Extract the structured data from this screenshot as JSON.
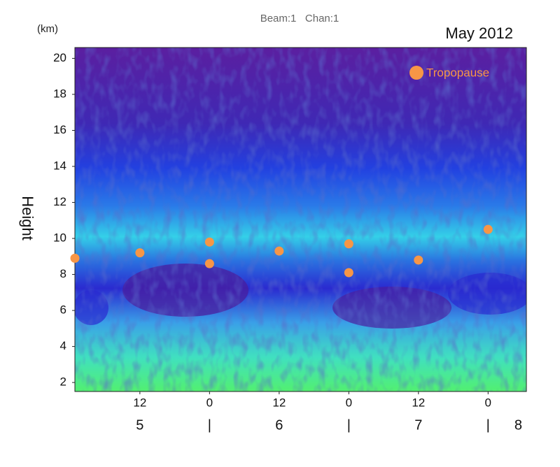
{
  "chart_data": {
    "type": "scatter",
    "title": "Beam:1   Chan:1",
    "subtitle": "May 2012",
    "y_unit": "(km)",
    "y_label": "Height",
    "xlim": [
      0.8,
      78.6
    ],
    "ylim": [
      1.5,
      20.6
    ],
    "xticks": [
      12,
      {
        "value": 24,
        "label": "0"
      },
      {
        "value": 36,
        "label": "12"
      },
      {
        "value": 48,
        "label": "0"
      },
      {
        "value": 60,
        "label": "12"
      },
      {
        "value": 72,
        "label": "0"
      }
    ],
    "day_ticks": [
      {
        "value": 12,
        "label": "5"
      },
      {
        "value": 24,
        "label": "|"
      },
      {
        "value": 36,
        "label": "6"
      },
      {
        "value": 48,
        "label": "|"
      },
      {
        "value": 60,
        "label": "7"
      },
      {
        "value": 72,
        "label": "|"
      },
      {
        "value": 77.2,
        "label": "8"
      }
    ],
    "yticks": [
      2,
      4,
      6,
      8,
      10,
      12,
      14,
      16,
      18,
      20
    ],
    "legend": "top-right",
    "series": [
      {
        "name": "Tropopause",
        "color": "#f79646",
        "x": [
          0.8,
          12,
          24,
          24,
          36,
          48,
          48,
          60,
          72
        ],
        "values": [
          8.9,
          9.2,
          9.8,
          8.6,
          9.3,
          9.7,
          8.1,
          8.8,
          10.5
        ]
      }
    ]
  }
}
